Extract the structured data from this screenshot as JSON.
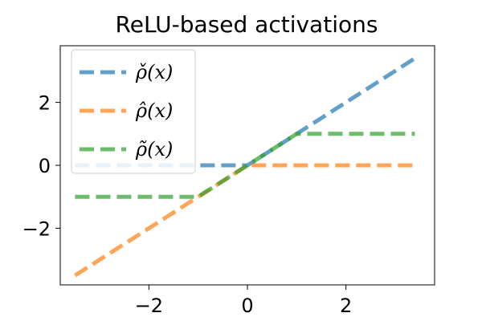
{
  "chart_data": {
    "type": "line",
    "title": "ReLU-based activations",
    "xlabel": "",
    "ylabel": "",
    "xlim": [
      -3.8,
      3.8
    ],
    "ylim": [
      -3.8,
      3.8
    ],
    "xticks": [
      -2,
      0,
      2
    ],
    "yticks": [
      -2,
      0,
      2
    ],
    "xtick_labels": [
      "−2",
      "0",
      "2"
    ],
    "ytick_labels": [
      "−2",
      "0",
      "2"
    ],
    "grid": false,
    "legend_position": "upper-left",
    "series": [
      {
        "name": "ρ̌(x)",
        "color": "#1f77b4",
        "points": [
          [
            -3.5,
            0
          ],
          [
            0,
            0
          ],
          [
            3.4,
            3.4
          ]
        ]
      },
      {
        "name": "ρ̂(x)",
        "color": "#ff7f0e",
        "points": [
          [
            -3.5,
            -3.5
          ],
          [
            0,
            0
          ],
          [
            3.4,
            0
          ]
        ]
      },
      {
        "name": "ρ̃(x)",
        "color": "#2ca02c",
        "points": [
          [
            -3.5,
            -1
          ],
          [
            -1,
            -1
          ],
          [
            1,
            1
          ],
          [
            3.4,
            1
          ]
        ]
      }
    ]
  }
}
